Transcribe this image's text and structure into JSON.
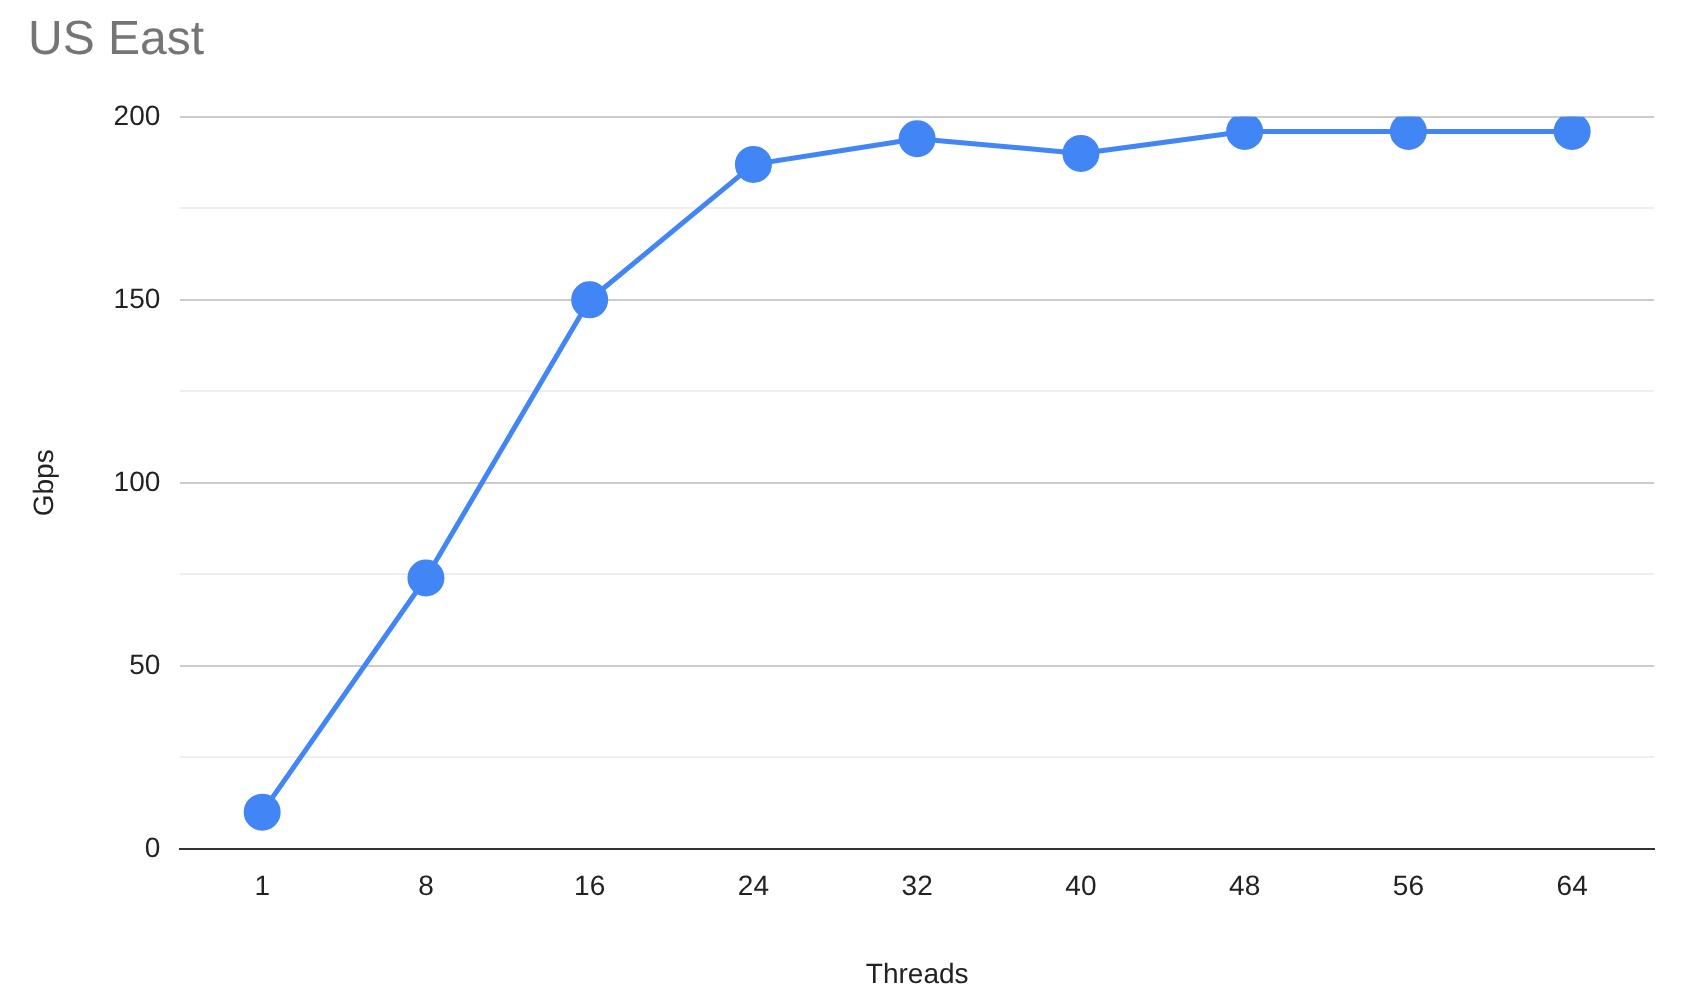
{
  "chart_data": {
    "type": "line",
    "title": "US East",
    "xlabel": "Threads",
    "ylabel": "Gbps",
    "categories": [
      "1",
      "8",
      "16",
      "24",
      "32",
      "40",
      "48",
      "56",
      "64"
    ],
    "series": [
      {
        "color": "#4285f4",
        "values": [
          10,
          74,
          150,
          187,
          194,
          190,
          196,
          196,
          196
        ]
      }
    ],
    "ylim": [
      0,
      200
    ],
    "yticks": [
      0,
      {
        "value": 25,
        "label": null
      },
      50,
      {
        "value": 75,
        "label": null
      },
      100,
      {
        "value": 125,
        "label": null
      },
      150,
      {
        "value": 175,
        "label": null
      },
      200
    ],
    "grid": "y",
    "legend": false,
    "marker": "circle",
    "line_style": "solid"
  }
}
